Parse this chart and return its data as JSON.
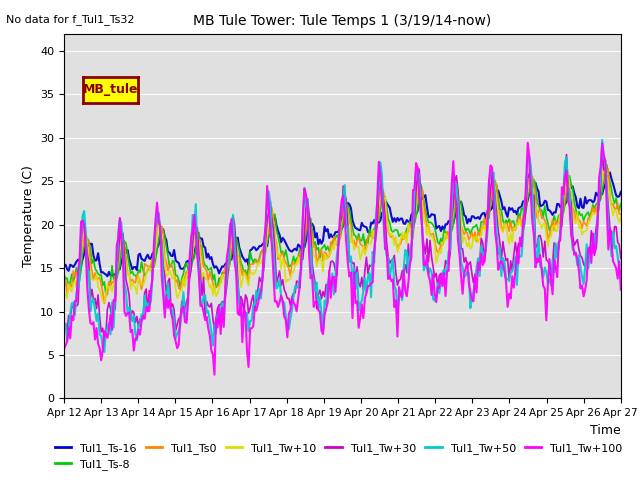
{
  "title": "MB Tule Tower: Tule Temps 1 (3/19/14-now)",
  "no_data_text": "No data for f_Tul1_Ts32",
  "xlabel": "Time",
  "ylabel": "Temperature (C)",
  "ylim": [
    0,
    42
  ],
  "yticks": [
    0,
    5,
    10,
    15,
    20,
    25,
    30,
    35,
    40
  ],
  "xstart": 12,
  "xend": 27,
  "xtick_labels": [
    "Apr 12",
    "Apr 13",
    "Apr 14",
    "Apr 15",
    "Apr 16",
    "Apr 17",
    "Apr 18",
    "Apr 19",
    "Apr 20",
    "Apr 21",
    "Apr 22",
    "Apr 23",
    "Apr 24",
    "Apr 25",
    "Apr 26",
    "Apr 27"
  ],
  "legend_box_label": "MB_tule",
  "legend_box_color": "#ffff00",
  "legend_box_border": "#8b0000",
  "bg_color": "#e0e0e0",
  "series": [
    {
      "label": "Tul1_Ts-16",
      "color": "#0000cc",
      "lw": 1.5
    },
    {
      "label": "Tul1_Ts-8",
      "color": "#00cc00",
      "lw": 1.2
    },
    {
      "label": "Tul1_Ts0",
      "color": "#ff8800",
      "lw": 1.2
    },
    {
      "label": "Tul1_Tw+10",
      "color": "#dddd00",
      "lw": 1.2
    },
    {
      "label": "Tul1_Tw+30",
      "color": "#cc00cc",
      "lw": 1.2
    },
    {
      "label": "Tul1_Tw+50",
      "color": "#00cccc",
      "lw": 1.5
    },
    {
      "label": "Tul1_Tw+100",
      "color": "#ff00ff",
      "lw": 1.5
    }
  ],
  "figsize": [
    6.4,
    4.8
  ],
  "dpi": 100
}
